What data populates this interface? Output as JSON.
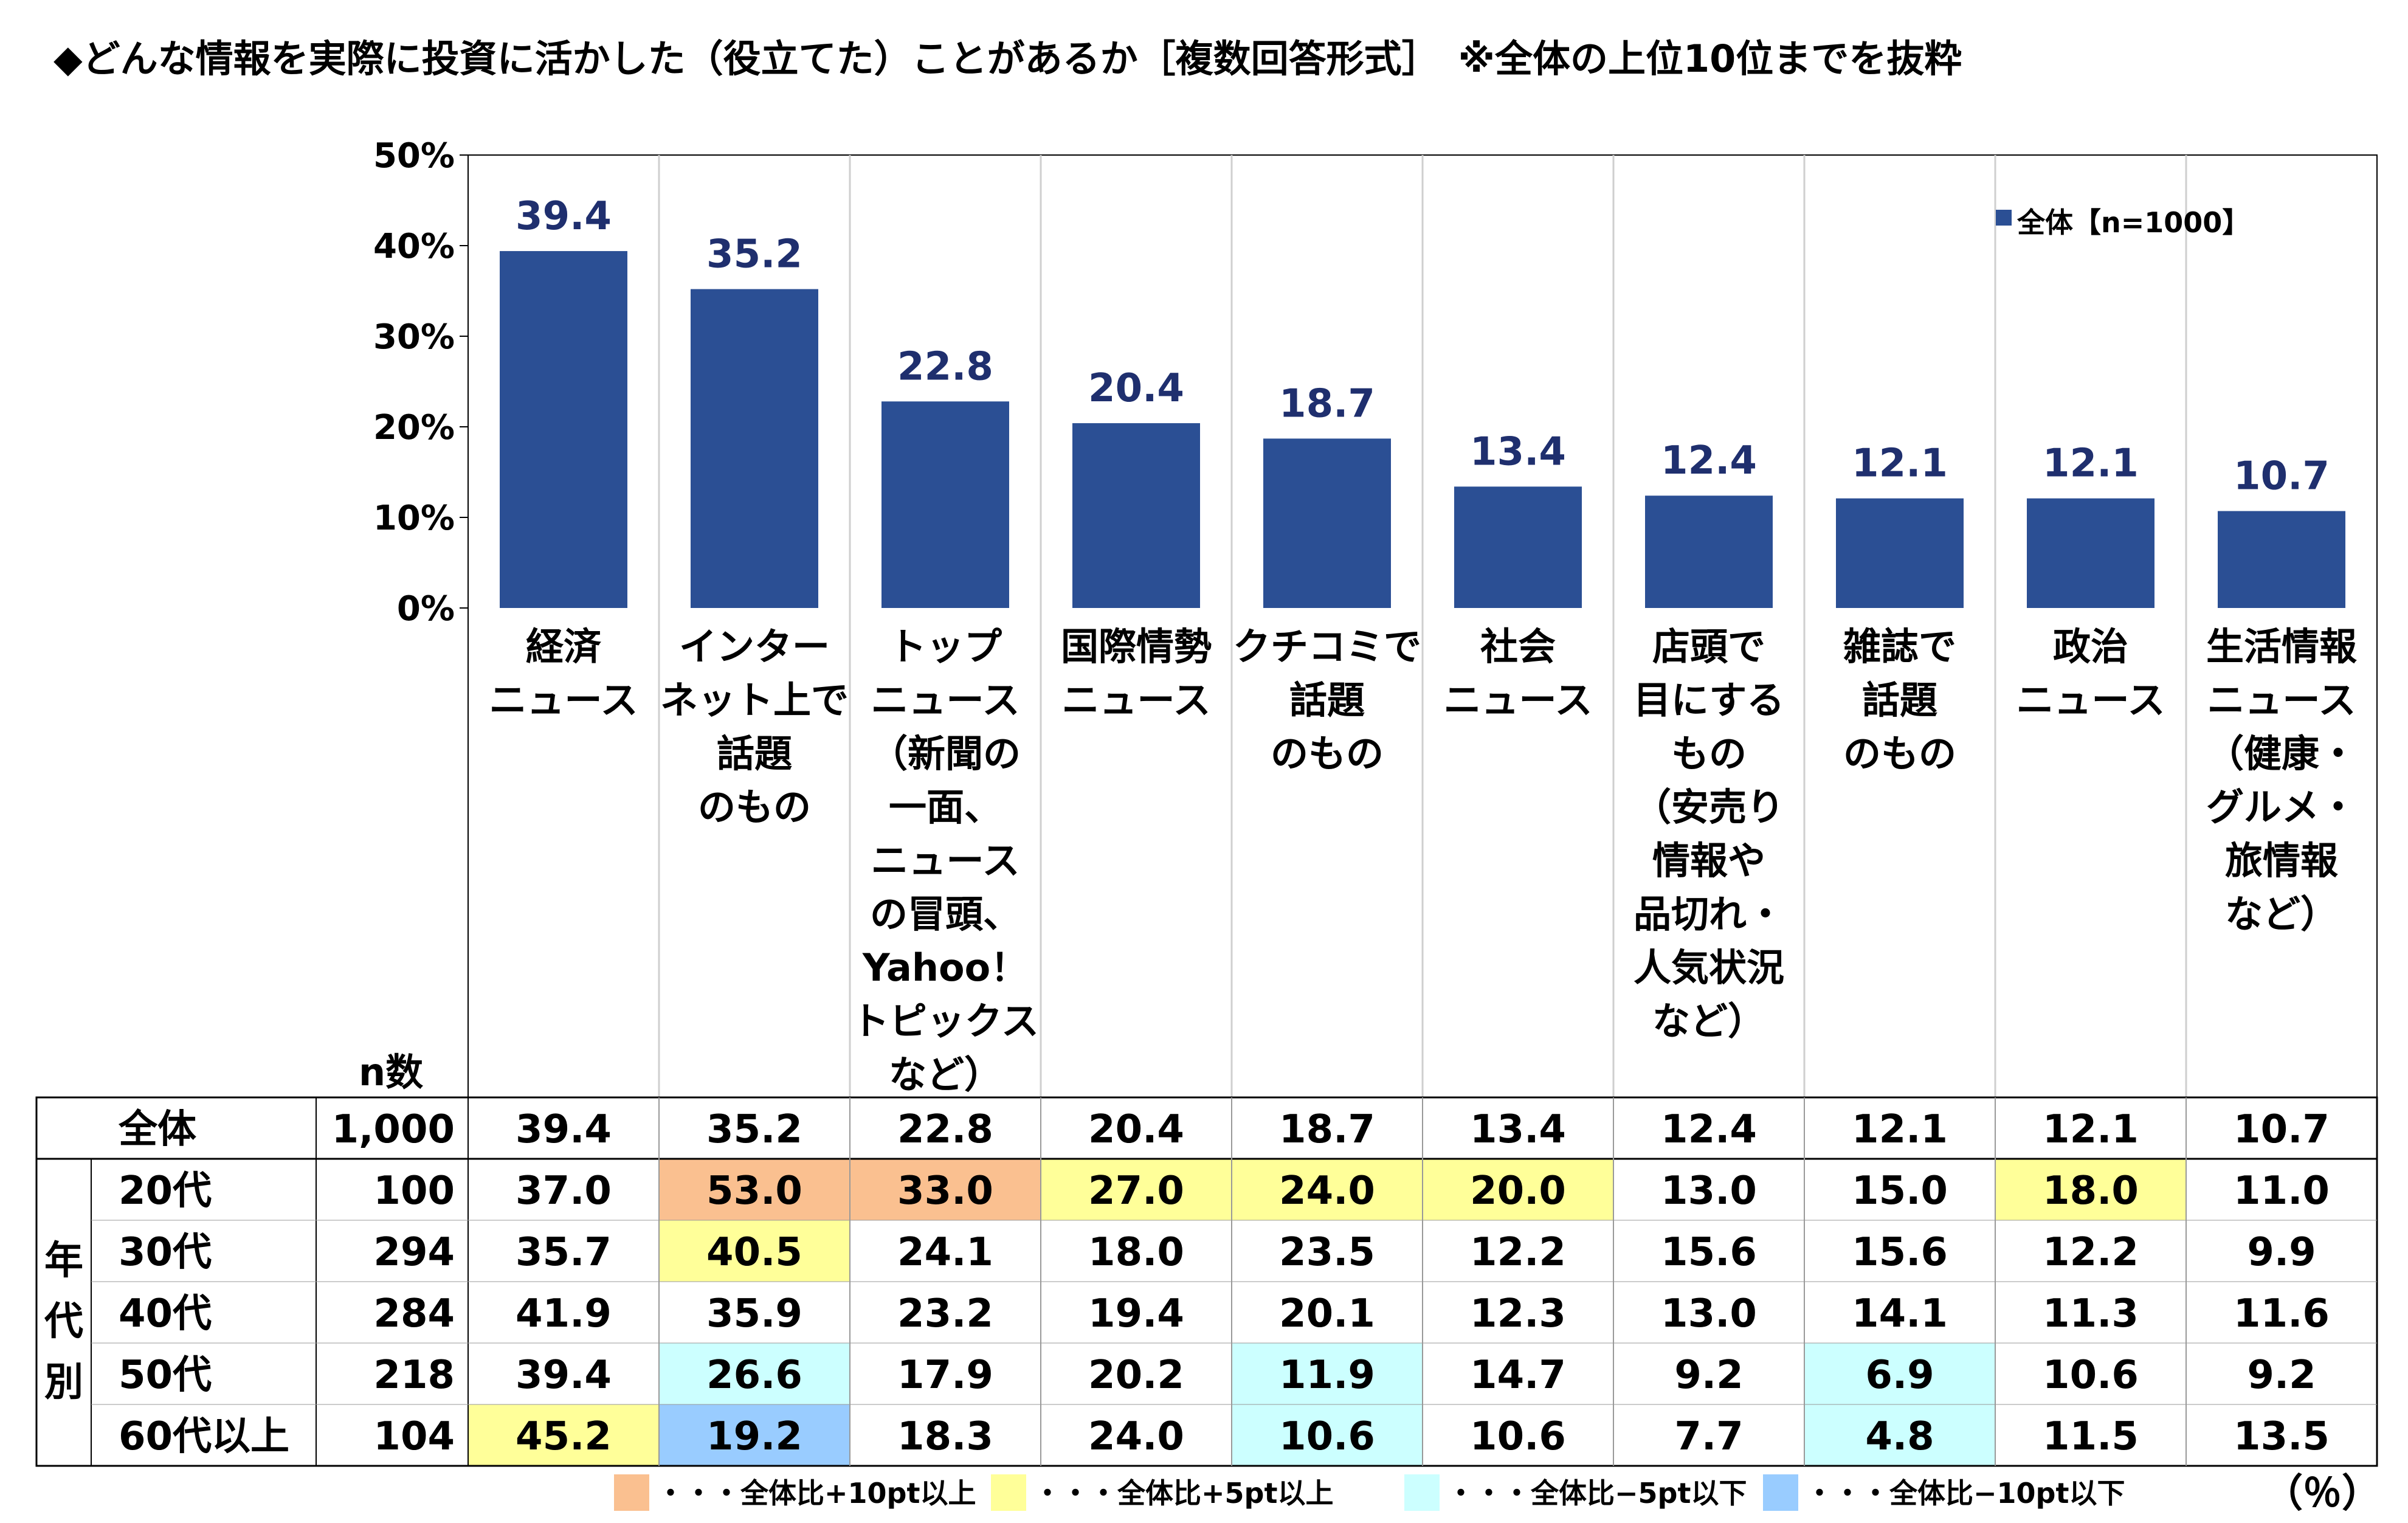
{
  "title": "◆どんな情報を実際に投資に活かした（役立てた）ことがあるか［複数回答形式］　※全体の上位10位までを抜粋",
  "chart_data": {
    "type": "bar",
    "categories": [
      [
        "経済",
        "ニュース"
      ],
      [
        "インター",
        "ネット上で",
        "話題",
        "のもの"
      ],
      [
        "トップ",
        "ニュース",
        "（新聞の",
        "一面、",
        "ニュース",
        "の冒頭、",
        "Yahoo！",
        "トピックス",
        "など）"
      ],
      [
        "国際情勢",
        "ニュース"
      ],
      [
        "クチコミで",
        "話題",
        "のもの"
      ],
      [
        "社会",
        "ニュース"
      ],
      [
        "店頭で",
        "目にする",
        "もの",
        "（安売り",
        "情報や",
        "品切れ・",
        "人気状況",
        "など）"
      ],
      [
        "雑誌で",
        "話題",
        "のもの"
      ],
      [
        "政治",
        "ニュース"
      ],
      [
        "生活情報",
        "ニュース",
        "（健康・",
        "グルメ・",
        "旅情報",
        "など）"
      ]
    ],
    "series": [
      {
        "name": "全体【n=1000】",
        "values": [
          39.4,
          35.2,
          22.8,
          20.4,
          18.7,
          13.4,
          12.4,
          12.1,
          12.1,
          10.7
        ],
        "color": "#2b4f94"
      }
    ],
    "value_labels": [
      "39.4",
      "35.2",
      "22.8",
      "20.4",
      "18.7",
      "13.4",
      "12.4",
      "12.1",
      "12.1",
      "10.7"
    ],
    "ylim": [
      0,
      50
    ],
    "yticks": [
      "0%",
      "10%",
      "20%",
      "30%",
      "40%",
      "50%"
    ],
    "grid": false,
    "legend": {
      "label": "全体【n=1000】",
      "position": "top-right"
    },
    "table": {
      "n_header": "n数",
      "group_label": [
        "年",
        "代",
        "別"
      ],
      "rows": [
        {
          "label": "全体",
          "n": "1,000",
          "values": [
            "39.4",
            "35.2",
            "22.8",
            "20.4",
            "18.7",
            "13.4",
            "12.4",
            "12.1",
            "12.1",
            "10.7"
          ],
          "flags": [
            0,
            0,
            0,
            0,
            0,
            0,
            0,
            0,
            0,
            0
          ]
        },
        {
          "label": "20代",
          "n": "100",
          "values": [
            "37.0",
            "53.0",
            "33.0",
            "27.0",
            "24.0",
            "20.0",
            "13.0",
            "15.0",
            "18.0",
            "11.0"
          ],
          "flags": [
            0,
            2,
            2,
            1,
            1,
            1,
            0,
            0,
            1,
            0
          ]
        },
        {
          "label": "30代",
          "n": "294",
          "values": [
            "35.7",
            "40.5",
            "24.1",
            "18.0",
            "23.5",
            "12.2",
            "15.6",
            "15.6",
            "12.2",
            "9.9"
          ],
          "flags": [
            0,
            1,
            0,
            0,
            0,
            0,
            0,
            0,
            0,
            0
          ]
        },
        {
          "label": "40代",
          "n": "284",
          "values": [
            "41.9",
            "35.9",
            "23.2",
            "19.4",
            "20.1",
            "12.3",
            "13.0",
            "14.1",
            "11.3",
            "11.6"
          ],
          "flags": [
            0,
            0,
            0,
            0,
            0,
            0,
            0,
            0,
            0,
            0
          ]
        },
        {
          "label": "50代",
          "n": "218",
          "values": [
            "39.4",
            "26.6",
            "17.9",
            "20.2",
            "11.9",
            "14.7",
            "9.2",
            "6.9",
            "10.6",
            "9.2"
          ],
          "flags": [
            0,
            -1,
            0,
            0,
            -1,
            0,
            0,
            -1,
            0,
            0
          ]
        },
        {
          "label": "60代以上",
          "n": "104",
          "values": [
            "45.2",
            "19.2",
            "18.3",
            "24.0",
            "10.6",
            "10.6",
            "7.7",
            "4.8",
            "11.5",
            "13.5"
          ],
          "flags": [
            1,
            -2,
            0,
            0,
            -1,
            0,
            0,
            -1,
            0,
            0
          ]
        }
      ]
    },
    "highlight_colors": {
      "plus10": "#fac090",
      "plus5": "#ffff99",
      "minus5": "#ccffff",
      "minus10": "#99ccff"
    },
    "highlight_legend": [
      {
        "key": "plus10",
        "label": "・・・全体比+10pt以上"
      },
      {
        "key": "plus5",
        "label": "・・・全体比+5pt以上"
      },
      {
        "key": "minus5",
        "label": "・・・全体比−5pt以下"
      },
      {
        "key": "minus10",
        "label": "・・・全体比−10pt以下"
      }
    ],
    "unit_note": "（％）"
  }
}
